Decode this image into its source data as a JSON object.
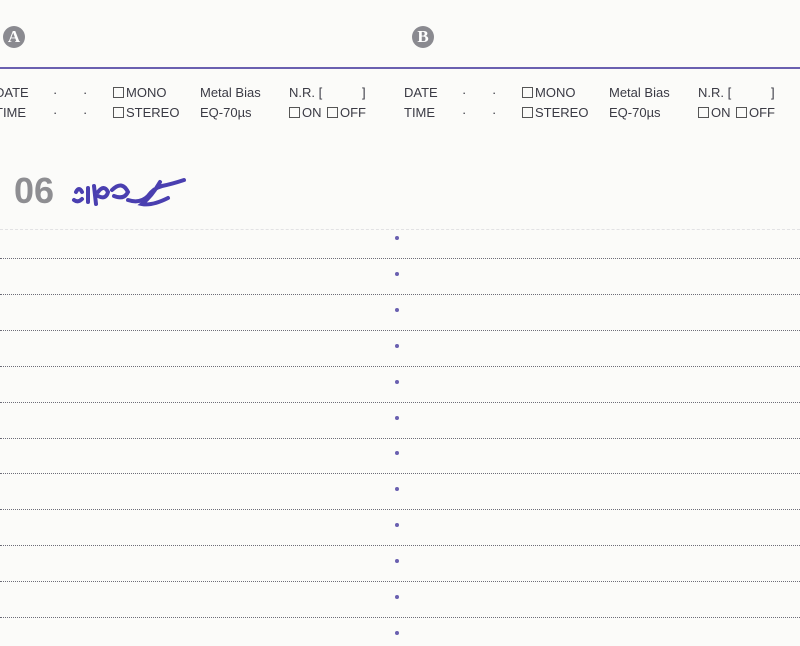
{
  "sides": [
    {
      "badge": "A",
      "date_label": "DATE",
      "time_label": "TIME",
      "sep": "·",
      "mono": "MONO",
      "stereo": "STEREO",
      "bias": "Metal Bias",
      "eq": "EQ-70µs",
      "nr": "N.R. [",
      "nr_close": "]",
      "on": "ON",
      "off": "OFF"
    },
    {
      "badge": "B",
      "date_label": "DATE",
      "time_label": "TIME",
      "sep": "·",
      "mono": "MONO",
      "stereo": "STEREO",
      "bias": "Metal Bias",
      "eq": "EQ-70µs",
      "nr": "N.R. [",
      "nr_close": "]",
      "on": "ON",
      "off": "OFF"
    }
  ],
  "tape_length": "06",
  "handwriting": "signature (upside down)",
  "colors": {
    "accent": "#6a60b0",
    "ink": "#4a3fb0"
  }
}
